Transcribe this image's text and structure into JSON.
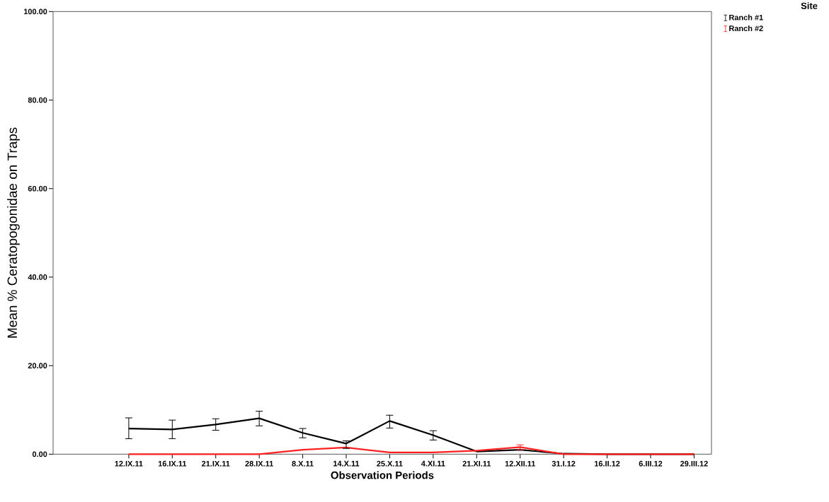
{
  "chart_data": {
    "type": "line",
    "xlabel": "Observation Periods",
    "ylabel": "Mean % Ceratopogonidae  on Traps",
    "legend_title": "Site",
    "legend": "top right",
    "categories": [
      "12.IX.11",
      "16.IX.11",
      "21.IX.11",
      "28.IX.11",
      "8.X.11",
      "14.X.11",
      "25.X.11",
      "4.XI.11",
      "21.XI.11",
      "12.XII.11",
      "31.I.12",
      "16.II.12",
      "6.III.12",
      "29.III.12"
    ],
    "ylim": [
      0,
      100
    ],
    "yticks": [
      {
        "value": 0,
        "label": "0.00"
      },
      {
        "value": 20,
        "label": "20.00"
      },
      {
        "value": 40,
        "label": "40.00"
      },
      {
        "value": 60,
        "label": "60.00"
      },
      {
        "value": 80,
        "label": "80.00"
      },
      {
        "value": 100,
        "label": "100.00"
      }
    ],
    "series": [
      {
        "name": "Ranch #1",
        "color": "#000000",
        "values": [
          5.8,
          5.6,
          6.7,
          8.1,
          4.8,
          2.4,
          7.5,
          4.3,
          0.6,
          1.0,
          0.1,
          0,
          0,
          0
        ],
        "errors": [
          [
            3.5,
            8.2
          ],
          [
            3.5,
            7.7
          ],
          [
            5.4,
            8.0
          ],
          [
            6.4,
            9.7
          ],
          [
            3.7,
            5.8
          ],
          [
            1.3,
            3.0
          ],
          [
            5.9,
            8.8
          ],
          [
            3.2,
            5.3
          ],
          null,
          null,
          null,
          null,
          null,
          null
        ]
      },
      {
        "name": "Ranch #2",
        "color": "#ff2020",
        "values": [
          0,
          0,
          0,
          0,
          1.0,
          1.5,
          0.4,
          0.4,
          0.8,
          1.6,
          0,
          0,
          0,
          0
        ],
        "errors": [
          null,
          null,
          null,
          null,
          null,
          null,
          null,
          null,
          null,
          [
            1.0,
            2.1
          ],
          null,
          null,
          null,
          null
        ]
      }
    ]
  }
}
